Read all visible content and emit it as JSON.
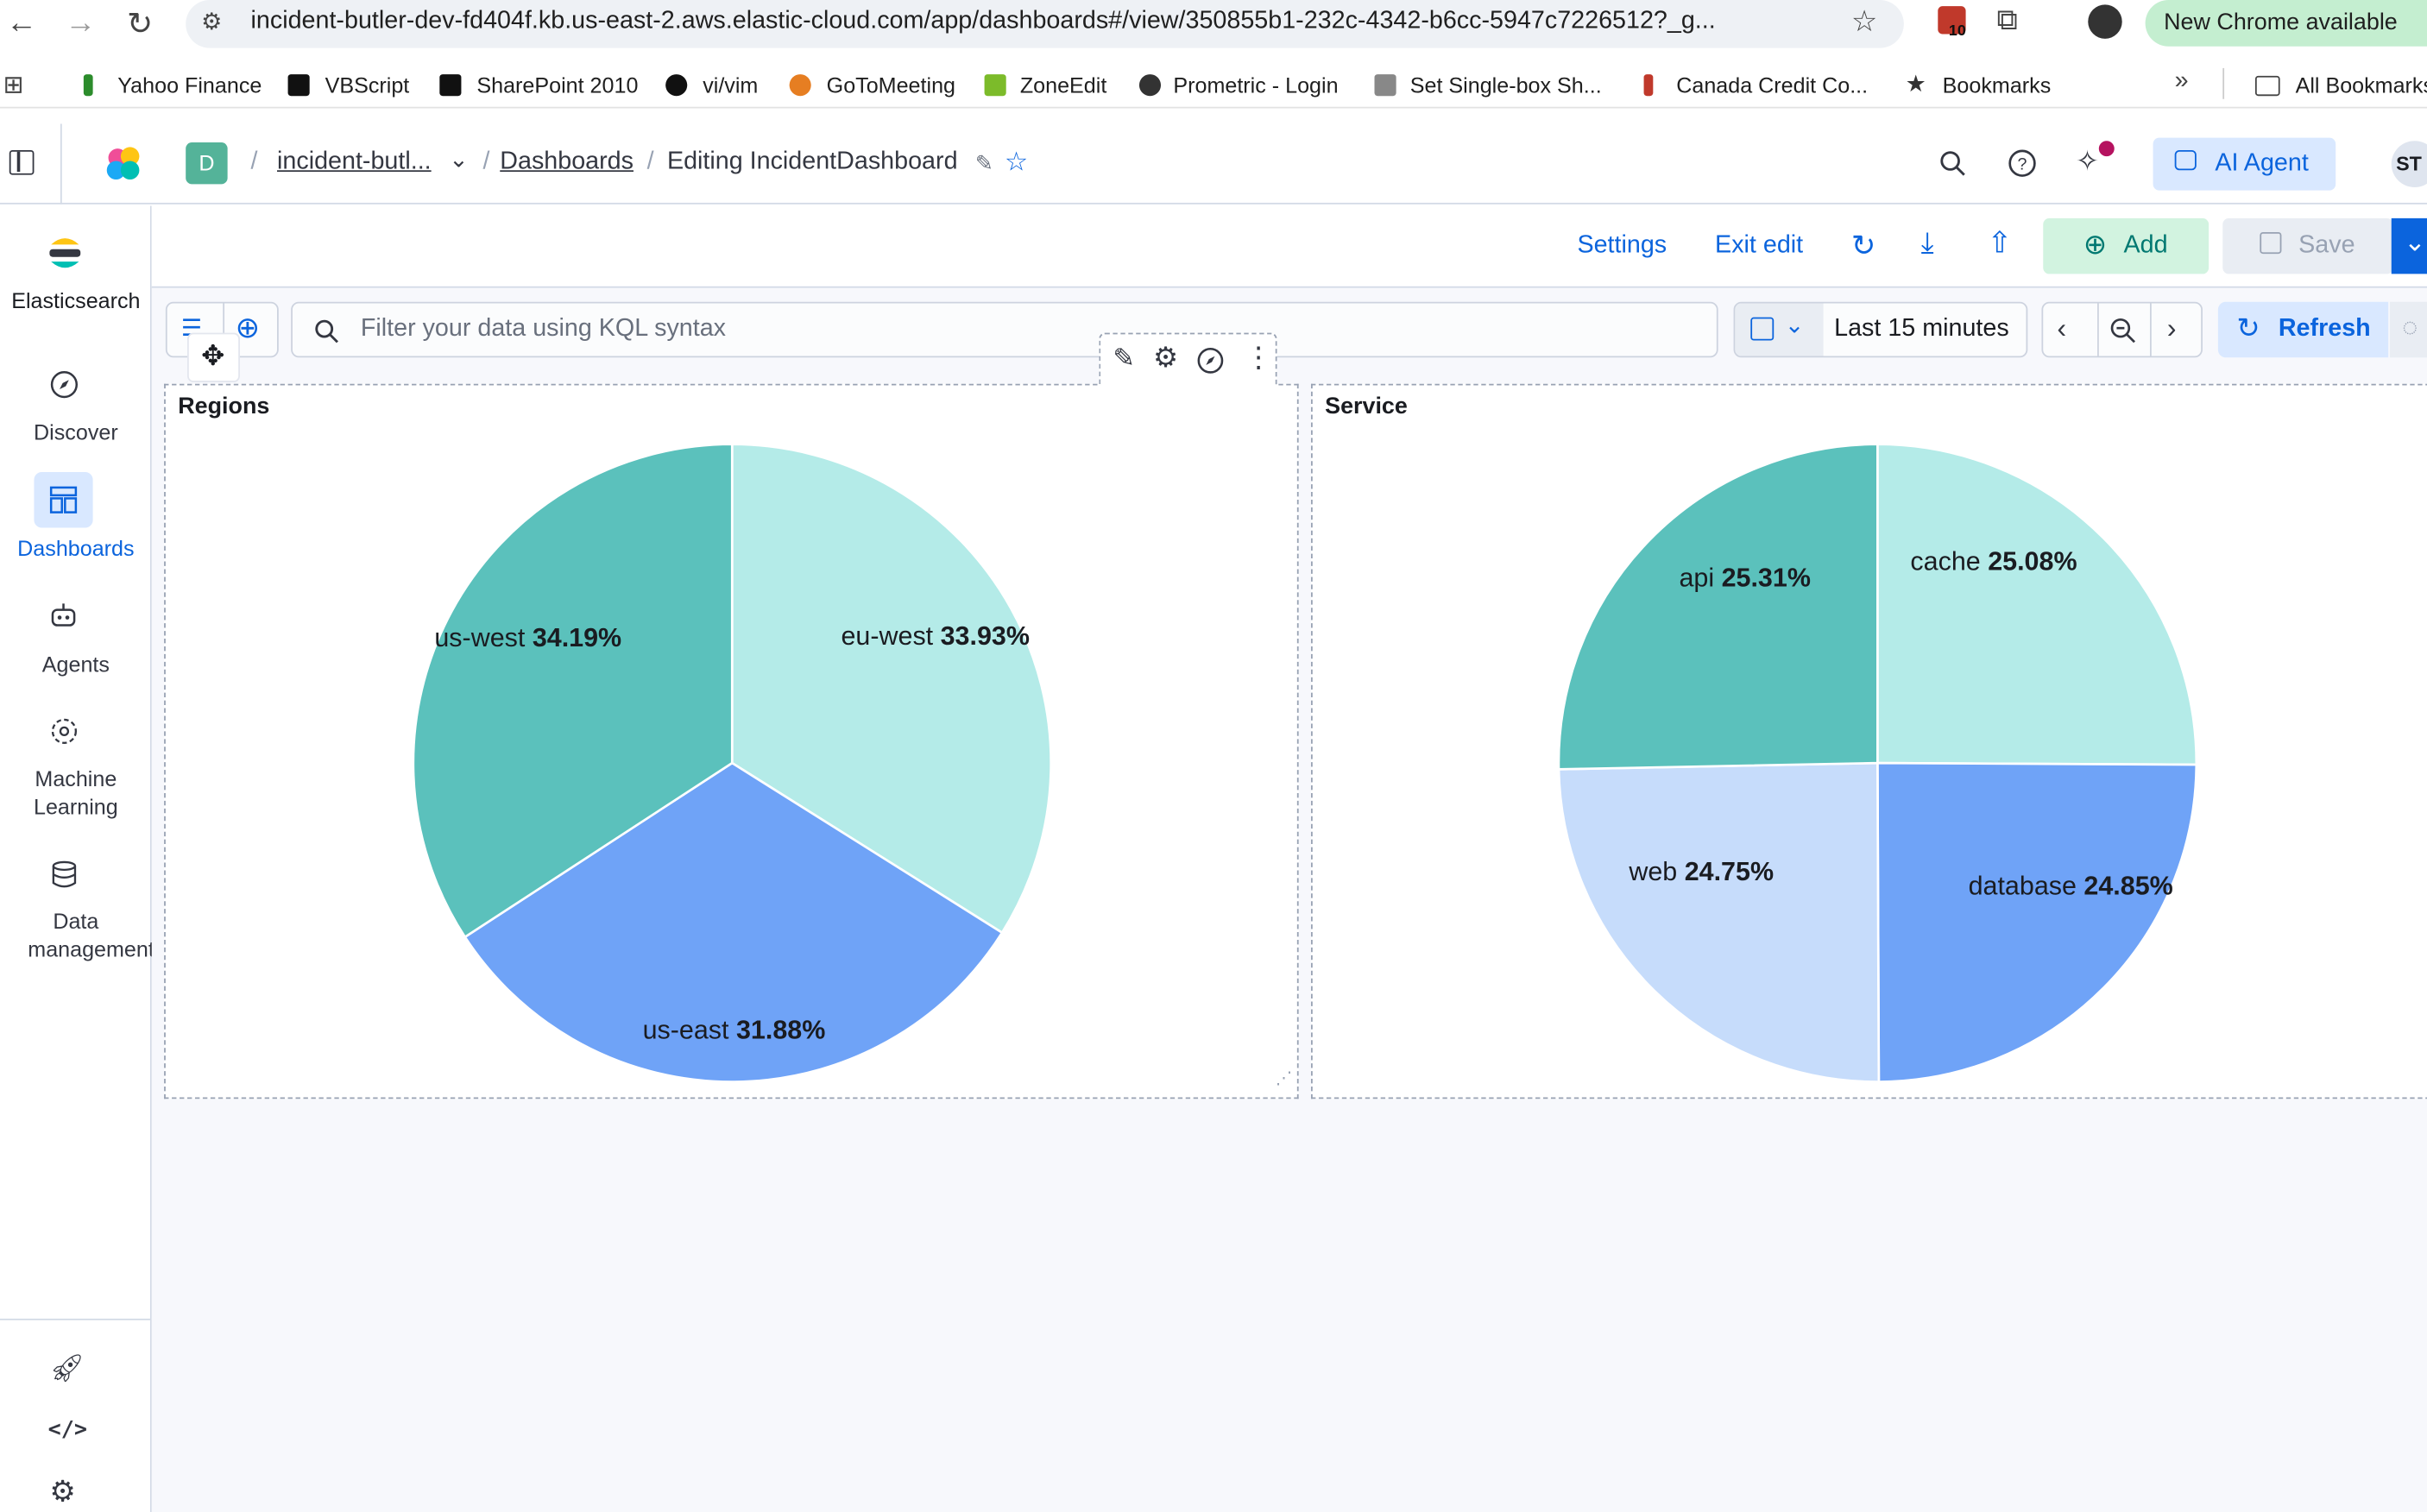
{
  "browser": {
    "url": "incident-butler-dev-fd404f.kb.us-east-2.aws.elastic-cloud.com/app/dashboards#/view/350855b1-232c-4342-b6cc-5947c7226512?_g...",
    "badge_count": "10",
    "update_label": "New Chrome available",
    "bookmarks": [
      "Yahoo Finance",
      "VBScript",
      "SharePoint 2010",
      "vi/vim",
      "GoToMeeting",
      "ZoneEdit",
      "Prometric - Login",
      "Set Single-box Sh...",
      "Canada Credit Co...",
      "Bookmarks"
    ],
    "all_bookmarks": "All Bookmarks"
  },
  "header": {
    "space_letter": "D",
    "deployment": "incident-butl...",
    "dashboards": "Dashboards",
    "current": "Editing IncidentDashboard",
    "ai_agent": "AI Agent",
    "avatar": "ST"
  },
  "sidenav": {
    "brand": "Elasticsearch",
    "items": [
      {
        "label": "Discover"
      },
      {
        "label": "Dashboards"
      },
      {
        "label": "Agents"
      },
      {
        "label": "Machine Learning"
      },
      {
        "label": "Data management"
      }
    ]
  },
  "toolbar": {
    "settings": "Settings",
    "exit_edit": "Exit edit",
    "add": "Add",
    "save": "Save"
  },
  "query": {
    "placeholder": "Filter your data using KQL syntax",
    "time_range": "Last 15 minutes",
    "refresh": "Refresh"
  },
  "colors": {
    "teal": "#5bc1bc",
    "light_teal": "#b4ebe8",
    "blue": "#6fa3f7",
    "light_blue": "#c6dcfb",
    "link": "#0b64dd"
  },
  "chart_data": [
    {
      "type": "pie",
      "title": "Regions",
      "labels": [
        "eu-west",
        "us-east",
        "us-west"
      ],
      "values": [
        33.93,
        31.88,
        34.19
      ],
      "value_labels": [
        "33.93%",
        "31.88%",
        "34.19%"
      ],
      "colors": [
        "#b4ebe8",
        "#6fa3f7",
        "#5bc1bc"
      ]
    },
    {
      "type": "pie",
      "title": "Service",
      "labels": [
        "cache",
        "database",
        "web",
        "api"
      ],
      "values": [
        25.08,
        24.85,
        24.75,
        25.31
      ],
      "value_labels": [
        "25.08%",
        "24.85%",
        "24.75%",
        "25.31%"
      ],
      "colors": [
        "#b4ebe8",
        "#6fa3f7",
        "#c6dcfb",
        "#5bc1bc"
      ]
    }
  ]
}
